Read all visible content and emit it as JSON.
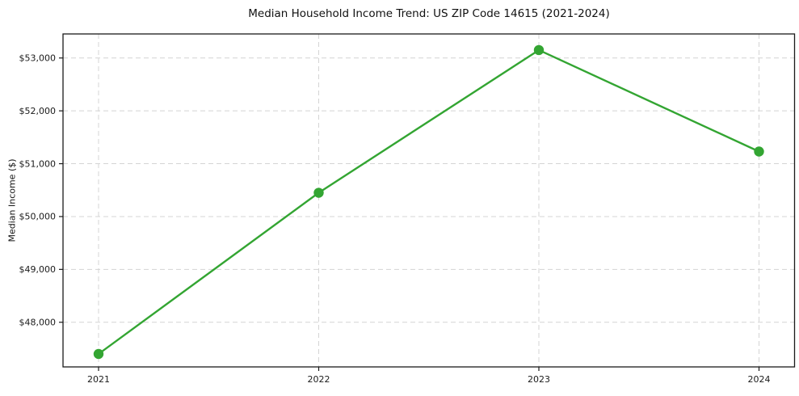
{
  "figure": {
    "background": "#ffffff"
  },
  "chart_data": {
    "type": "line",
    "title": "Median Household Income Trend: US ZIP Code 14615 (2021-2024)",
    "xlabel": "",
    "ylabel": "Median Income ($)",
    "x_tick_labels": [
      "2021",
      "2022",
      "2023",
      "2024"
    ],
    "series": [
      {
        "name": "median-income",
        "values": [
          47400,
          50450,
          53150,
          51230
        ],
        "color": "#33a532",
        "marker": "circle",
        "line_width": 2.4,
        "marker_radius": 6.2
      }
    ],
    "y_ticks": [
      48000,
      49000,
      50000,
      51000,
      52000,
      53000
    ],
    "y_tick_labels": [
      "$48,000",
      "$49,000",
      "$50,000",
      "$51,000",
      "$52,000",
      "$53,000"
    ],
    "ylim": [
      47155,
      53455
    ],
    "grid": "dashed",
    "grid_color": "#d4d4d4",
    "axis_color": "#1a1a1a",
    "tick_label_color": "#1a1a1a",
    "legend_position": "none"
  }
}
